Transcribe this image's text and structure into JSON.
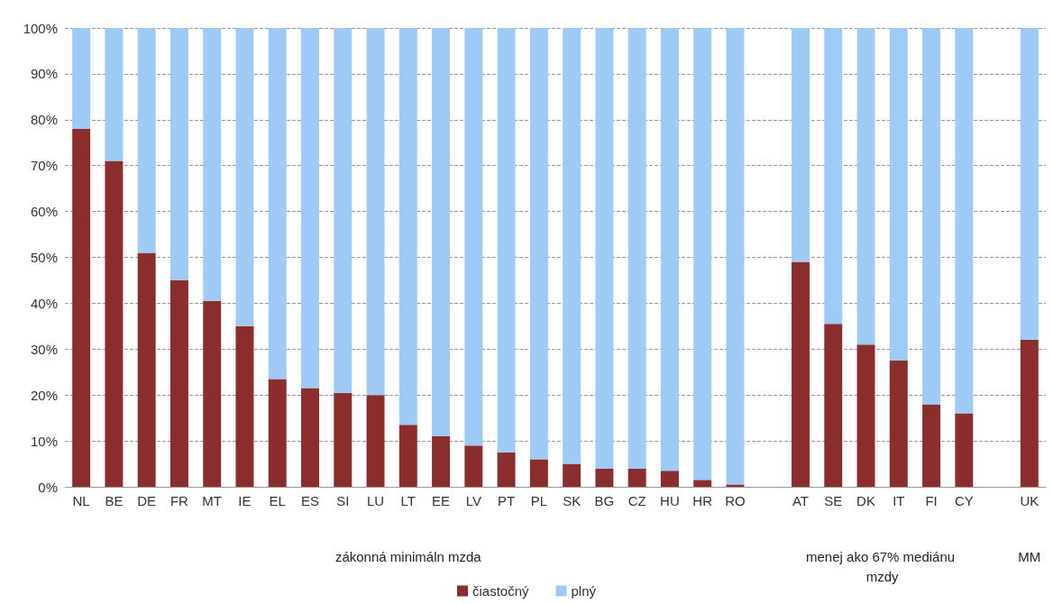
{
  "chart_data": {
    "type": "bar",
    "stacked": true,
    "categories": [
      "NL",
      "BE",
      "DE",
      "FR",
      "MT",
      "IE",
      "EL",
      "ES",
      "SI",
      "LU",
      "LT",
      "EE",
      "LV",
      "PT",
      "PL",
      "SK",
      "BG",
      "CZ",
      "HU",
      "HR",
      "RO",
      null,
      "AT",
      "SE",
      "DK",
      "IT",
      "FI",
      "CY",
      null,
      "UK"
    ],
    "series": [
      {
        "name": "čiastočný",
        "color": "#8b2d2d",
        "values": [
          78,
          71,
          51,
          45,
          40.5,
          35,
          23.5,
          21.5,
          20.5,
          20,
          13.5,
          11,
          9,
          7.5,
          6,
          5,
          4,
          4,
          3.5,
          1.5,
          0.5,
          null,
          49,
          35.5,
          31,
          27.5,
          18,
          16,
          null,
          32
        ]
      },
      {
        "name": "plný",
        "color": "#9dcbf5",
        "values": [
          22,
          29,
          49,
          55,
          59.5,
          65,
          76.5,
          78.5,
          79.5,
          80,
          86.5,
          89,
          91,
          92.5,
          94,
          95,
          96,
          96,
          96.5,
          98.5,
          99.5,
          null,
          51,
          64.5,
          69,
          72.5,
          82,
          84,
          null,
          68
        ]
      }
    ],
    "ylim": [
      0,
      100
    ],
    "yticks": [
      {
        "value": 0,
        "label": "0%"
      },
      {
        "value": 10,
        "label": "10%"
      },
      {
        "value": 20,
        "label": "20%"
      },
      {
        "value": 30,
        "label": "30%"
      },
      {
        "value": 40,
        "label": "40%"
      },
      {
        "value": 50,
        "label": "50%"
      },
      {
        "value": 60,
        "label": "60%"
      },
      {
        "value": 70,
        "label": "70%"
      },
      {
        "value": 80,
        "label": "80%"
      },
      {
        "value": 90,
        "label": "90%"
      },
      {
        "value": 100,
        "label": "100%"
      }
    ],
    "grid": "y",
    "legend": "bottom",
    "annotations": [
      "zákonná minimáln mzda",
      "menej ako 67% mediánu mzdy",
      "MM"
    ]
  }
}
